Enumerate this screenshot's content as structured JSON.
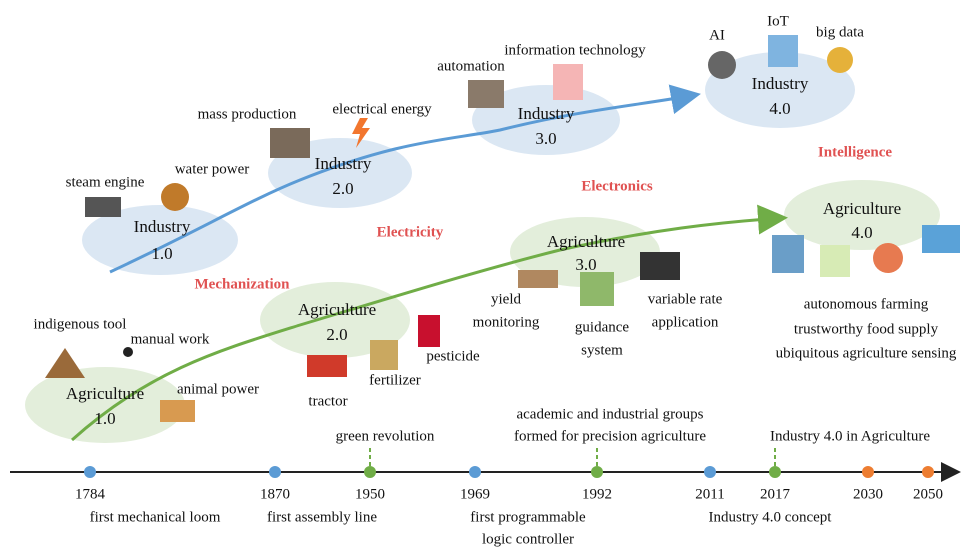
{
  "industry": [
    {
      "lines": [
        "Industry",
        "1.0"
      ],
      "era": "Mechanization",
      "items": [
        "steam engine",
        "water power"
      ]
    },
    {
      "lines": [
        "Industry",
        "2.0"
      ],
      "era": "Electricity",
      "items": [
        "mass production",
        "electrical energy"
      ]
    },
    {
      "lines": [
        "Industry",
        "3.0"
      ],
      "era": "Electronics",
      "items": [
        "automation",
        "information technology"
      ]
    },
    {
      "lines": [
        "Industry",
        "4.0"
      ],
      "era": "Intelligence",
      "items": [
        "AI",
        "IoT",
        "big data"
      ]
    }
  ],
  "agriculture": [
    {
      "lines": [
        "Agriculture",
        "1.0"
      ],
      "items": [
        {
          "lines": [
            "indigenous tool"
          ]
        },
        {
          "lines": [
            "manual work"
          ]
        },
        {
          "lines": [
            "animal power"
          ]
        }
      ]
    },
    {
      "lines": [
        "Agriculture",
        "2.0"
      ],
      "items": [
        {
          "lines": [
            "tractor"
          ]
        },
        {
          "lines": [
            "fertilizer"
          ]
        },
        {
          "lines": [
            "pesticide"
          ]
        }
      ]
    },
    {
      "lines": [
        "Agriculture",
        "3.0"
      ],
      "items": [
        {
          "lines": [
            "yield",
            "monitoring"
          ]
        },
        {
          "lines": [
            "guidance",
            "system"
          ]
        },
        {
          "lines": [
            "variable rate",
            "application"
          ]
        }
      ]
    },
    {
      "lines": [
        "Agriculture",
        "4.0"
      ],
      "items": [
        {
          "lines": [
            "autonomous farming"
          ]
        },
        {
          "lines": [
            "trustworthy food supply"
          ]
        },
        {
          "lines": [
            "ubiquitous agriculture sensing"
          ]
        }
      ]
    }
  ],
  "timeline": [
    {
      "year": "1784",
      "color": "#5b9bd5",
      "below": [
        "first mechanical loom"
      ]
    },
    {
      "year": "1870",
      "color": "#5b9bd5",
      "below": [
        "first assembly line"
      ]
    },
    {
      "year": "1950",
      "color": "#70ad47",
      "above": [
        "green revolution"
      ]
    },
    {
      "year": "1969",
      "color": "#5b9bd5",
      "below": [
        "first programmable",
        "logic controller"
      ]
    },
    {
      "year": "1992",
      "color": "#70ad47",
      "above": [
        "academic and industrial groups",
        "formed for precision agriculture"
      ]
    },
    {
      "year": "2011",
      "color": "#5b9bd5",
      "below": [
        "Industry 4.0 concept"
      ]
    },
    {
      "year": "2017",
      "color": "#70ad47",
      "above": [
        "Industry 4.0 in Agriculture"
      ]
    },
    {
      "year": "2030",
      "color": "#ed7d31"
    },
    {
      "year": "2050",
      "color": "#ed7d31"
    }
  ]
}
